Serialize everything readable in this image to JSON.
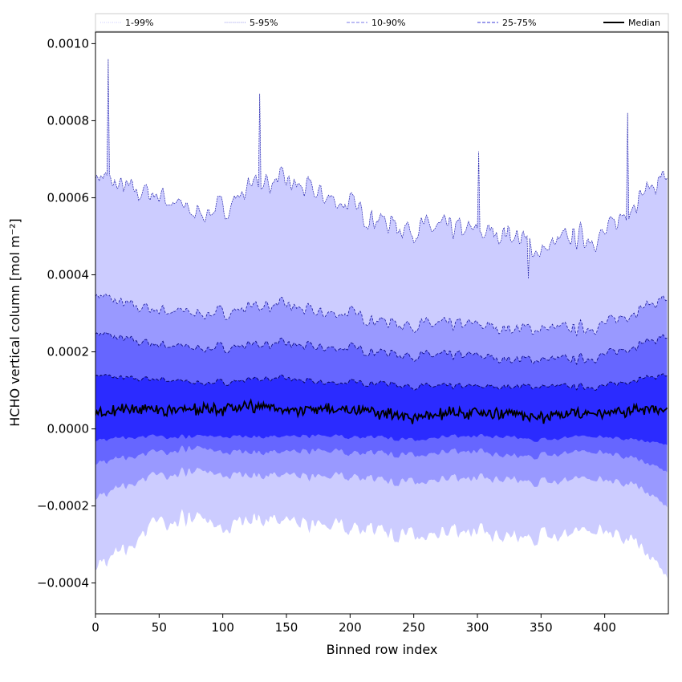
{
  "chart_data": {
    "type": "area",
    "title": "",
    "xlabel": "Binned row index",
    "ylabel": "HCHO vertical column [mol m⁻²]",
    "xlim": [
      0,
      450
    ],
    "ylim": [
      -0.00048,
      0.00103
    ],
    "xticks": [
      0,
      50,
      100,
      150,
      200,
      250,
      300,
      350,
      400
    ],
    "xtick_labels": [
      "0",
      "50",
      "100",
      "150",
      "200",
      "250",
      "300",
      "350",
      "400"
    ],
    "yticks": [
      -0.0004,
      -0.0002,
      0.0,
      0.0002,
      0.0004,
      0.0006,
      0.0008,
      0.001
    ],
    "ytick_labels": [
      "−0.0004",
      "−0.0002",
      "0.0000",
      "0.0002",
      "0.0004",
      "0.0006",
      "0.0008",
      "0.0010"
    ],
    "grid": false,
    "legend_position": "top, outside, horizontal",
    "legend": [
      {
        "label": "1-99%",
        "style": "dotted",
        "color": "#c8c8ff"
      },
      {
        "label": "5-95%",
        "style": "dotted",
        "color": "#8a8ae8"
      },
      {
        "label": "10-90%",
        "style": "dashed",
        "color": "#7a7ae8"
      },
      {
        "label": "25-75%",
        "style": "dashed",
        "color": "#3a3ad8"
      },
      {
        "label": "Median",
        "style": "solid",
        "color": "#000000"
      }
    ],
    "x": [
      0,
      25,
      50,
      75,
      100,
      125,
      150,
      175,
      200,
      225,
      250,
      275,
      300,
      325,
      350,
      375,
      400,
      425,
      449
    ],
    "series": [
      {
        "name": "1-99%",
        "color": "#ccccff",
        "upper": [
          0.00066,
          0.00062,
          0.00061,
          0.00056,
          0.00057,
          0.00064,
          0.00064,
          0.00061,
          0.00058,
          0.00054,
          0.00052,
          0.00052,
          0.00051,
          0.00051,
          0.00046,
          0.0005,
          0.0005,
          0.0006,
          0.00066
        ],
        "lower": [
          -0.00036,
          -0.0003,
          -0.00024,
          -0.00023,
          -0.00026,
          -0.00023,
          -0.00024,
          -0.00026,
          -0.00025,
          -0.00026,
          -0.00028,
          -0.00027,
          -0.00027,
          -0.00028,
          -0.00028,
          -0.00027,
          -0.00026,
          -0.0003,
          -0.00038
        ]
      },
      {
        "name": "5-95%",
        "color": "#9999ff",
        "upper": [
          0.00035,
          0.00032,
          0.00031,
          0.0003,
          0.0003,
          0.00032,
          0.00032,
          0.0003,
          0.0003,
          0.00028,
          0.00027,
          0.00027,
          0.00027,
          0.00026,
          0.00026,
          0.00026,
          0.00027,
          0.00031,
          0.00034
        ],
        "lower": [
          -0.00018,
          -0.00014,
          -0.00012,
          -0.00011,
          -0.00012,
          -0.00012,
          -0.00012,
          -0.00013,
          -0.00012,
          -0.00013,
          -0.00014,
          -0.00013,
          -0.00013,
          -0.00013,
          -0.00014,
          -0.00013,
          -0.00013,
          -0.00015,
          -0.0002
        ]
      },
      {
        "name": "10-90%",
        "color": "#6666ff",
        "upper": [
          0.00025,
          0.00023,
          0.00022,
          0.00021,
          0.00021,
          0.00022,
          0.00022,
          0.00021,
          0.00021,
          0.0002,
          0.00019,
          0.00019,
          0.00019,
          0.00018,
          0.00018,
          0.00018,
          0.00019,
          0.00022,
          0.00024
        ],
        "lower": [
          -9e-05,
          -7e-05,
          -6e-05,
          -5e-05,
          -6e-05,
          -6e-05,
          -6e-05,
          -6e-05,
          -6e-05,
          -6e-05,
          -7e-05,
          -6e-05,
          -6e-05,
          -7e-05,
          -7e-05,
          -6e-05,
          -6e-05,
          -8e-05,
          -0.00011
        ]
      },
      {
        "name": "25-75%",
        "color": "#2b2bff",
        "upper": [
          0.00014,
          0.00013,
          0.00013,
          0.00012,
          0.00012,
          0.00013,
          0.00013,
          0.00012,
          0.00012,
          0.00012,
          0.00011,
          0.00011,
          0.00011,
          0.00011,
          0.00011,
          0.00011,
          0.00011,
          0.00013,
          0.00014
        ],
        "lower": [
          -3e-05,
          -2e-05,
          -2e-05,
          -2e-05,
          -2e-05,
          -2e-05,
          -2e-05,
          -2e-05,
          -2e-05,
          -2e-05,
          -3e-05,
          -2e-05,
          -2e-05,
          -2e-05,
          -3e-05,
          -2e-05,
          -2e-05,
          -3e-05,
          -4e-05
        ]
      },
      {
        "name": "Median",
        "color": "#000000",
        "values": [
          4e-05,
          5e-05,
          5e-05,
          5e-05,
          5e-05,
          6e-05,
          5e-05,
          5e-05,
          5e-05,
          4e-05,
          3e-05,
          4e-05,
          4e-05,
          4e-05,
          3e-05,
          4e-05,
          4e-05,
          5e-05,
          5e-05
        ]
      }
    ],
    "spikes": [
      {
        "x": 10,
        "y": 0.00096
      },
      {
        "x": 129,
        "y": 0.00087
      },
      {
        "x": 301,
        "y": 0.00072
      },
      {
        "x": 340,
        "y": 0.00039
      },
      {
        "x": 418,
        "y": 0.00082
      }
    ]
  }
}
